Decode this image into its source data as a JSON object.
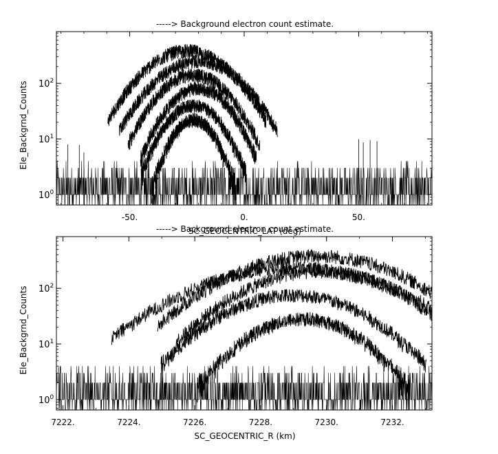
{
  "chart_data": [
    {
      "type": "line",
      "title": "-----> Background electron count estimate.",
      "xlabel": "SC_GEOCENTRIC_LAT (deg)",
      "ylabel": "Ele_Backgrnd_Counts",
      "xlim": [
        -82,
        82
      ],
      "ylim": [
        0.65,
        850
      ],
      "yscale": "log",
      "x_ticks": [
        {
          "value": -50,
          "label": "-50."
        },
        {
          "value": 0,
          "label": "0."
        },
        {
          "value": 50,
          "label": "50."
        }
      ],
      "y_ticks": [
        {
          "value": 1,
          "base": "10",
          "exp": "0"
        },
        {
          "value": 10,
          "base": "10",
          "exp": "1"
        },
        {
          "value": 100,
          "base": "10",
          "exp": "2"
        }
      ],
      "data_range": [
        -82,
        82
      ],
      "series": [
        {
          "center": -25,
          "half_width": 30,
          "peak": 380
        },
        {
          "center": -20,
          "half_width": 30,
          "peak": 250
        },
        {
          "center": -22,
          "half_width": 25,
          "peak": 140
        },
        {
          "center": -20,
          "half_width": 22,
          "peak": 80
        },
        {
          "center": -22,
          "half_width": 20,
          "peak": 40
        },
        {
          "center": -22,
          "half_width": 16,
          "peak": 22
        }
      ],
      "background_counts": [
        0,
        1,
        2,
        3,
        4
      ]
    },
    {
      "type": "line",
      "title": "-----> Background electron count estimate.",
      "xlabel": "SC_GEOCENTRIC_R (km)",
      "ylabel": "Ele_Backgrnd_Counts",
      "xlim": [
        7221.8,
        7233.2
      ],
      "ylim": [
        0.65,
        850
      ],
      "yscale": "log",
      "x_ticks": [
        {
          "value": 7222,
          "label": "7222."
        },
        {
          "value": 7224,
          "label": "7224."
        },
        {
          "value": 7226,
          "label": "7226."
        },
        {
          "value": 7228,
          "label": "7228."
        },
        {
          "value": 7230,
          "label": "7230."
        },
        {
          "value": 7232,
          "label": "7232."
        }
      ],
      "y_ticks": [
        {
          "value": 1,
          "base": "10",
          "exp": "0"
        },
        {
          "value": 10,
          "base": "10",
          "exp": "1"
        },
        {
          "value": 100,
          "base": "10",
          "exp": "2"
        }
      ],
      "data_range": [
        7221.8,
        7233.2
      ],
      "series": [
        {
          "center": 7229.7,
          "half_width": 4.2,
          "peak": 380
        },
        {
          "center": 7229.0,
          "half_width": 4.8,
          "peak": 230
        },
        {
          "center": 7229.8,
          "half_width": 3.8,
          "peak": 200
        },
        {
          "center": 7229.0,
          "half_width": 3.5,
          "peak": 75
        },
        {
          "center": 7229.3,
          "half_width": 2.8,
          "peak": 28
        }
      ],
      "background_counts": [
        0,
        1,
        2,
        3,
        4
      ]
    }
  ]
}
